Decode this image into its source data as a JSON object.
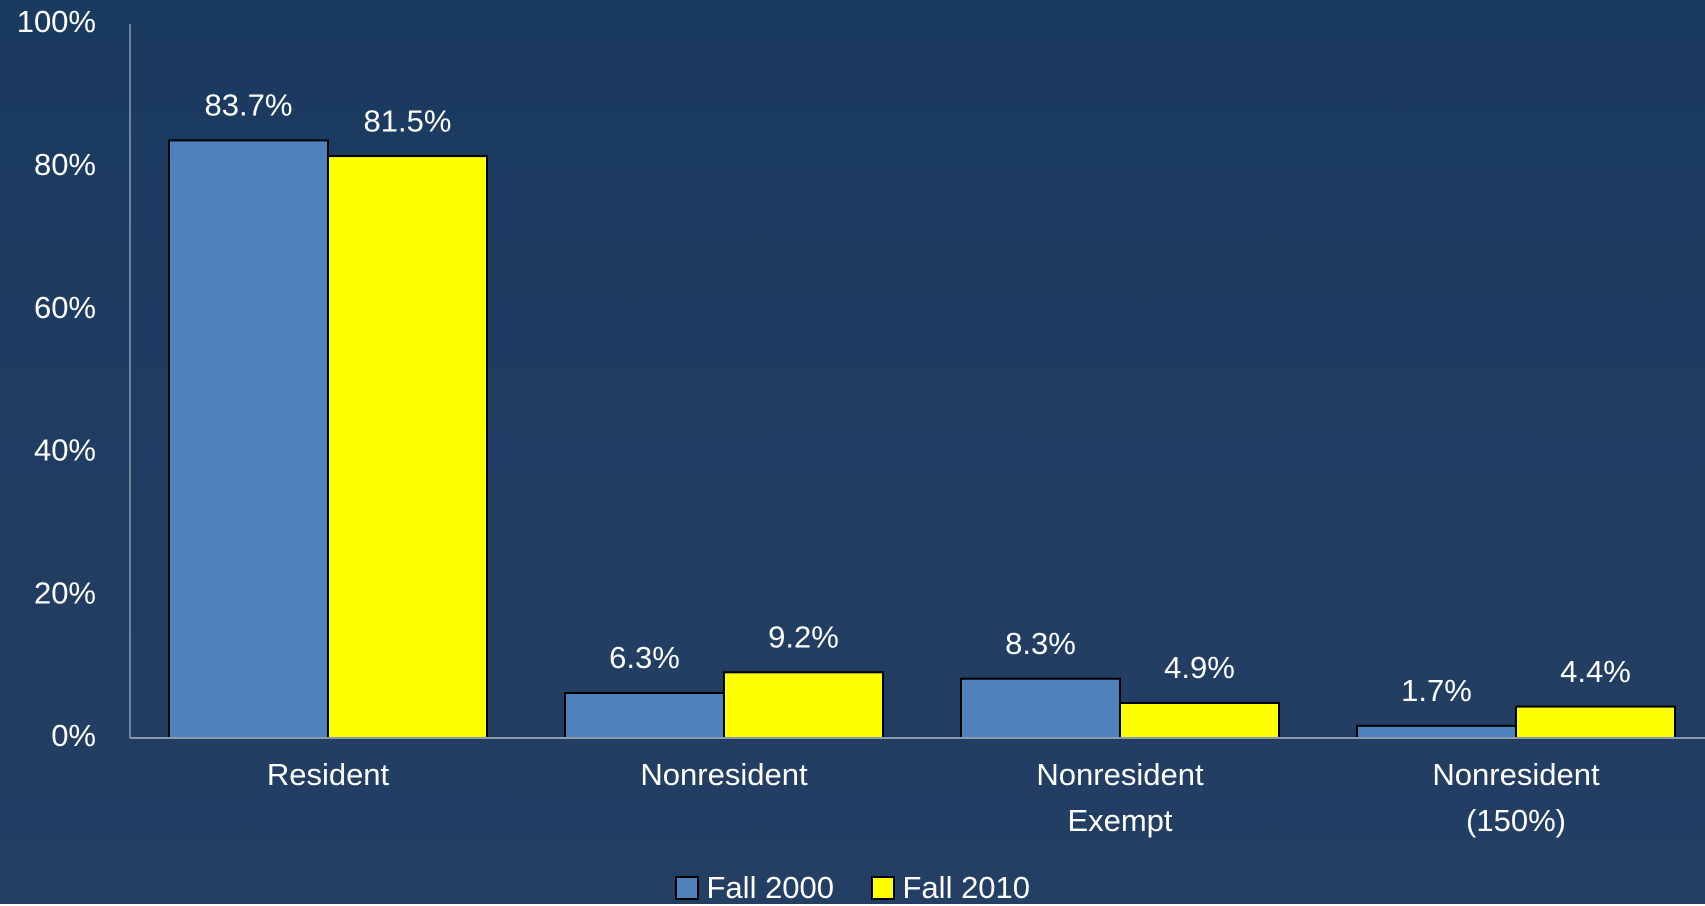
{
  "chart_data": {
    "type": "bar",
    "categories": [
      "Resident",
      "Nonresident",
      "Nonresident Exempt",
      "Nonresident (150%)"
    ],
    "series": [
      {
        "name": "Fall 2000",
        "color": "#4f81bd",
        "values": [
          83.7,
          6.3,
          8.3,
          1.7
        ],
        "value_labels": [
          "83.7%",
          "6.3%",
          "8.3%",
          "1.7%"
        ]
      },
      {
        "name": "Fall 2010",
        "color": "#ffff00",
        "values": [
          81.5,
          9.2,
          4.9,
          4.4
        ],
        "value_labels": [
          "81.5%",
          "9.2%",
          "4.9%",
          "4.4%"
        ]
      }
    ],
    "ylim": [
      0,
      100
    ],
    "yticks": [
      {
        "value": 0,
        "label": "0%"
      },
      {
        "value": 20,
        "label": "20%"
      },
      {
        "value": 40,
        "label": "40%"
      },
      {
        "value": 60,
        "label": "60%"
      },
      {
        "value": 80,
        "label": "80%"
      },
      {
        "value": 100,
        "label": "100%"
      }
    ],
    "grid": false,
    "legend": "bottom"
  }
}
